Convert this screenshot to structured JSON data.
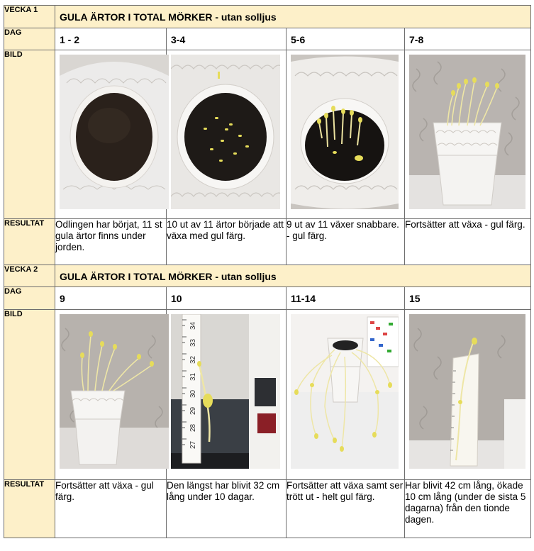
{
  "weeks": [
    {
      "label": "VECKA 1",
      "title": "GULA ÄRTOR I TOTAL MÖRKER - utan solljus",
      "day_label": "DAG",
      "image_label": "BILD",
      "result_label": "RESULTAT",
      "days": [
        "1 - 2",
        "3-4",
        "5-6",
        "7-8"
      ],
      "results": [
        "Odlingen har börjat, 11 st gula ärtor finns under jorden.",
        "10 ut av 11 ärtor började att växa med gul färg.",
        "9 ut av 11 växer snabbare. - gul färg.",
        "Fortsätter att växa - gul färg."
      ]
    },
    {
      "label": "VECKA 2",
      "title": "GULA ÄRTOR I TOTAL MÖRKER - utan solljus",
      "day_label": "DAG",
      "image_label": "BILD",
      "result_label": "RESULTAT",
      "days": [
        "9",
        "10",
        "11-14",
        "15"
      ],
      "results": [
        "Fortsätter att växa - gul färg.",
        "Den längst har blivit 32 cm lång under 10 dagar.",
        "Fortsätter att växa samt ser trött ut - helt gul färg.",
        "Har blivit 42 cm lång, ökade 10 cm lång (under de sista 5 dagarna) från den tionde dagen."
      ]
    }
  ],
  "ruler_numbers": [
    "34",
    "33",
    "32",
    "31",
    "30",
    "29",
    "28",
    "27"
  ],
  "colors": {
    "label_bg": "#fdf0c9",
    "border": "#6d6d6d",
    "sprout": "#e6dc5a",
    "soil": "#1c1814"
  }
}
